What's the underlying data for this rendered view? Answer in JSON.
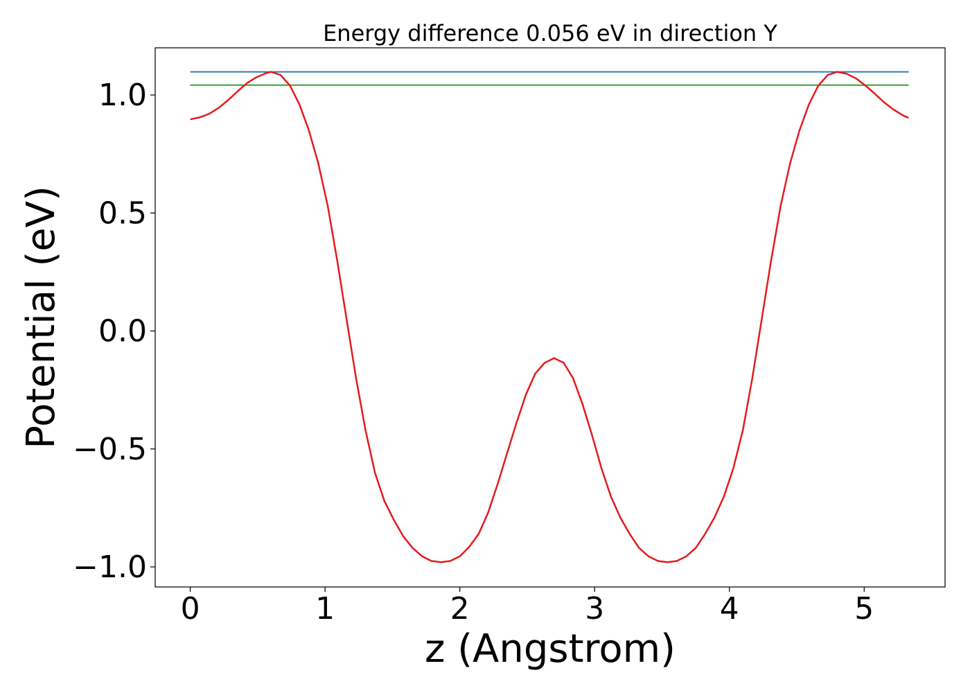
{
  "chart_data": {
    "type": "line",
    "title": "Energy difference 0.056 eV in direction Y",
    "xlabel": "z (Angstrom)",
    "ylabel": "Potential (eV)",
    "xlim": [
      -0.26,
      5.6
    ],
    "ylim": [
      -1.085,
      1.2
    ],
    "xticks": [
      0,
      1,
      2,
      3,
      4,
      5
    ],
    "xtick_labels": [
      "0",
      "1",
      "2",
      "3",
      "4",
      "5"
    ],
    "yticks": [
      1.0,
      0.5,
      0.0,
      -0.5,
      -1.0
    ],
    "ytick_labels": [
      "1.0",
      "0.5",
      "0.0",
      "−0.5",
      "−1.0"
    ],
    "grid": false,
    "series": [
      {
        "color": "#1f77b4",
        "x": [
          0,
          5.33
        ],
        "y": [
          1.098,
          1.098
        ]
      },
      {
        "color": "#2ca02c",
        "x": [
          0,
          5.33
        ],
        "y": [
          1.042,
          1.042
        ]
      },
      {
        "color": "#e41a1c",
        "x": [
          0,
          0.07,
          0.14,
          0.21,
          0.28,
          0.35,
          0.42,
          0.49,
          0.56,
          0.6,
          0.67,
          0.74,
          0.81,
          0.88,
          0.95,
          1.02,
          1.09,
          1.16,
          1.23,
          1.3,
          1.37,
          1.44,
          1.51,
          1.58,
          1.65,
          1.72,
          1.79,
          1.86,
          1.93,
          2.0,
          2.07,
          2.14,
          2.21,
          2.28,
          2.35,
          2.42,
          2.49,
          2.56,
          2.63,
          2.7,
          2.77,
          2.84,
          2.91,
          2.98,
          3.05,
          3.12,
          3.19,
          3.26,
          3.33,
          3.4,
          3.47,
          3.54,
          3.61,
          3.68,
          3.75,
          3.82,
          3.89,
          3.96,
          4.03,
          4.1,
          4.17,
          4.24,
          4.31,
          4.38,
          4.45,
          4.52,
          4.59,
          4.66,
          4.73,
          4.8,
          4.87,
          4.94,
          5.01,
          5.08,
          5.15,
          5.22,
          5.29,
          5.33
        ],
        "y": [
          0.897,
          0.905,
          0.92,
          0.945,
          0.978,
          1.015,
          1.05,
          1.075,
          1.092,
          1.098,
          1.085,
          1.04,
          0.96,
          0.85,
          0.71,
          0.53,
          0.3,
          0.05,
          -0.2,
          -0.42,
          -0.6,
          -0.72,
          -0.8,
          -0.87,
          -0.92,
          -0.955,
          -0.975,
          -0.98,
          -0.975,
          -0.955,
          -0.915,
          -0.86,
          -0.77,
          -0.65,
          -0.52,
          -0.39,
          -0.27,
          -0.18,
          -0.135,
          -0.115,
          -0.135,
          -0.2,
          -0.31,
          -0.44,
          -0.58,
          -0.7,
          -0.79,
          -0.86,
          -0.92,
          -0.955,
          -0.975,
          -0.98,
          -0.975,
          -0.955,
          -0.92,
          -0.86,
          -0.79,
          -0.7,
          -0.58,
          -0.42,
          -0.2,
          0.05,
          0.3,
          0.53,
          0.71,
          0.85,
          0.96,
          1.04,
          1.085,
          1.098,
          1.09,
          1.07,
          1.04,
          1.005,
          0.968,
          0.937,
          0.913,
          0.903
        ]
      }
    ]
  }
}
